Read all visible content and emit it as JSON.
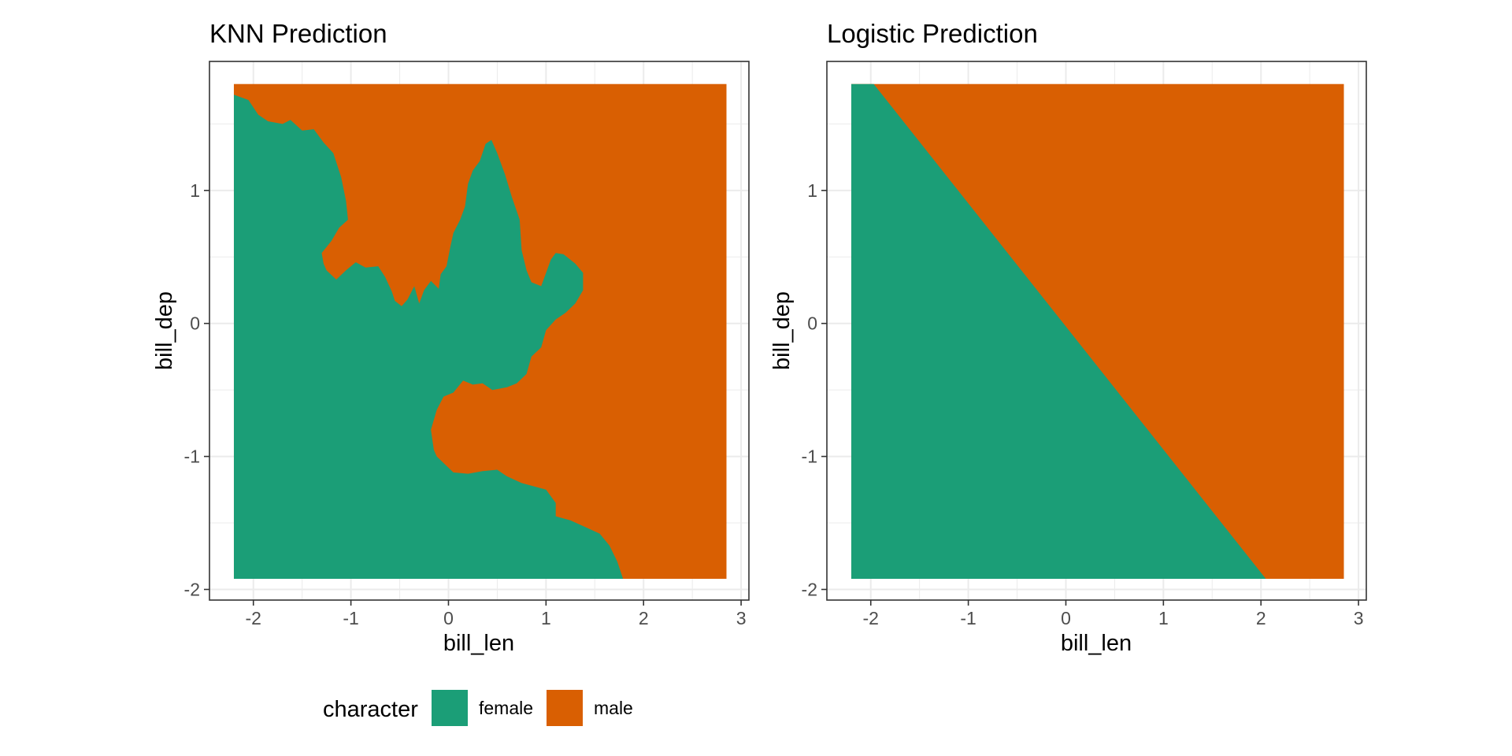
{
  "colors": {
    "female": "#1b9e77",
    "male": "#d95f02",
    "grid": "#ebebeb",
    "border": "#333333",
    "tick_text": "#4d4d4d"
  },
  "legend": {
    "title": "character",
    "items": [
      {
        "label": "female",
        "color": "#1b9e77"
      },
      {
        "label": "male",
        "color": "#d95f02"
      }
    ],
    "placement": "bottom"
  },
  "chart_data": [
    {
      "type": "heatmap",
      "title": "KNN Prediction",
      "xlabel": "bill_len",
      "ylabel": "bill_dep",
      "xlim": [
        -2.45,
        3.08
      ],
      "ylim": [
        -2.08,
        1.97
      ],
      "xticks": [
        -2,
        -1,
        0,
        1,
        2,
        3
      ],
      "yticks": [
        -2,
        -1,
        0,
        1
      ],
      "grid": true,
      "grid_extent": {
        "x": [
          -2.2,
          2.85
        ],
        "y": [
          -1.92,
          1.8
        ]
      },
      "background_class": "male",
      "regions": [
        {
          "class": "female",
          "polygon": [
            [
              -2.2,
              -1.92
            ],
            [
              -2.2,
              1.72
            ],
            [
              -2.05,
              1.68
            ],
            [
              -1.95,
              1.57
            ],
            [
              -1.85,
              1.52
            ],
            [
              -1.7,
              1.5
            ],
            [
              -1.62,
              1.53
            ],
            [
              -1.5,
              1.45
            ],
            [
              -1.38,
              1.46
            ],
            [
              -1.28,
              1.36
            ],
            [
              -1.18,
              1.28
            ],
            [
              -1.1,
              1.1
            ],
            [
              -1.05,
              0.92
            ],
            [
              -1.03,
              0.78
            ],
            [
              -1.12,
              0.72
            ],
            [
              -1.2,
              0.62
            ],
            [
              -1.3,
              0.53
            ],
            [
              -1.28,
              0.45
            ],
            [
              -1.25,
              0.4
            ],
            [
              -1.15,
              0.33
            ],
            [
              -1.05,
              0.4
            ],
            [
              -0.95,
              0.46
            ],
            [
              -0.85,
              0.42
            ],
            [
              -0.72,
              0.43
            ],
            [
              -0.65,
              0.35
            ],
            [
              -0.58,
              0.24
            ],
            [
              -0.55,
              0.17
            ],
            [
              -0.48,
              0.13
            ],
            [
              -0.42,
              0.18
            ],
            [
              -0.35,
              0.28
            ],
            [
              -0.3,
              0.15
            ],
            [
              -0.25,
              0.25
            ],
            [
              -0.18,
              0.32
            ],
            [
              -0.1,
              0.26
            ],
            [
              -0.08,
              0.37
            ],
            [
              -0.02,
              0.43
            ],
            [
              0.02,
              0.58
            ],
            [
              0.05,
              0.68
            ],
            [
              0.12,
              0.78
            ],
            [
              0.17,
              0.88
            ],
            [
              0.2,
              1.05
            ],
            [
              0.25,
              1.15
            ],
            [
              0.32,
              1.22
            ],
            [
              0.38,
              1.35
            ],
            [
              0.44,
              1.38
            ],
            [
              0.5,
              1.28
            ],
            [
              0.58,
              1.12
            ],
            [
              0.65,
              0.95
            ],
            [
              0.73,
              0.78
            ],
            [
              0.75,
              0.55
            ],
            [
              0.8,
              0.4
            ],
            [
              0.85,
              0.31
            ],
            [
              0.95,
              0.28
            ],
            [
              1.0,
              0.38
            ],
            [
              1.05,
              0.48
            ],
            [
              1.1,
              0.53
            ],
            [
              1.18,
              0.52
            ],
            [
              1.3,
              0.45
            ],
            [
              1.38,
              0.38
            ],
            [
              1.38,
              0.25
            ],
            [
              1.3,
              0.15
            ],
            [
              1.2,
              0.08
            ],
            [
              1.1,
              0.03
            ],
            [
              1.0,
              -0.05
            ],
            [
              0.95,
              -0.18
            ],
            [
              0.85,
              -0.25
            ],
            [
              0.8,
              -0.38
            ],
            [
              0.7,
              -0.45
            ],
            [
              0.6,
              -0.48
            ],
            [
              0.45,
              -0.5
            ],
            [
              0.35,
              -0.45
            ],
            [
              0.25,
              -0.46
            ],
            [
              0.15,
              -0.43
            ],
            [
              0.05,
              -0.52
            ],
            [
              -0.05,
              -0.55
            ],
            [
              -0.12,
              -0.65
            ],
            [
              -0.18,
              -0.8
            ],
            [
              -0.15,
              -0.95
            ],
            [
              -0.12,
              -1.0
            ],
            [
              -0.05,
              -1.05
            ],
            [
              0.05,
              -1.12
            ],
            [
              0.2,
              -1.13
            ],
            [
              0.35,
              -1.11
            ],
            [
              0.5,
              -1.1
            ],
            [
              0.6,
              -1.15
            ],
            [
              0.75,
              -1.2
            ],
            [
              0.85,
              -1.22
            ],
            [
              1.0,
              -1.25
            ],
            [
              1.1,
              -1.35
            ],
            [
              1.1,
              -1.45
            ],
            [
              1.25,
              -1.48
            ],
            [
              1.4,
              -1.53
            ],
            [
              1.55,
              -1.58
            ],
            [
              1.65,
              -1.67
            ],
            [
              1.73,
              -1.79
            ],
            [
              1.79,
              -1.92
            ]
          ]
        }
      ]
    },
    {
      "type": "heatmap",
      "title": "Logistic Prediction",
      "xlabel": "bill_len",
      "ylabel": "bill_dep",
      "xlim": [
        -2.45,
        3.08
      ],
      "ylim": [
        -2.08,
        1.97
      ],
      "xticks": [
        -2,
        -1,
        0,
        1,
        2,
        3
      ],
      "yticks": [
        -2,
        -1,
        0,
        1
      ],
      "grid": true,
      "grid_extent": {
        "x": [
          -2.2,
          2.85
        ],
        "y": [
          -1.92,
          1.8
        ]
      },
      "background_class": "male",
      "regions": [
        {
          "class": "female",
          "polygon": [
            [
              -2.2,
              -1.92
            ],
            [
              -2.2,
              1.8
            ],
            [
              -1.97,
              1.8
            ],
            [
              2.05,
              -1.92
            ]
          ]
        }
      ]
    }
  ]
}
